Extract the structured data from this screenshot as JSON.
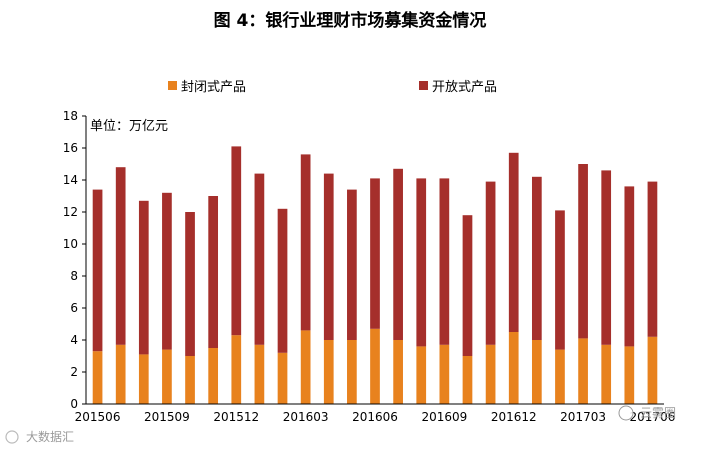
{
  "chart_data": {
    "type": "bar",
    "stacked": true,
    "title": "图 4：银行业理财市场募集资金情况",
    "unit_label": "单位：万亿元",
    "ylim": [
      0,
      18
    ],
    "yticks": [
      0,
      2,
      4,
      6,
      8,
      10,
      12,
      14,
      16,
      18
    ],
    "categories": [
      "201506",
      "201507",
      "201508",
      "201509",
      "201510",
      "201511",
      "201512",
      "201601",
      "201602",
      "201603",
      "201604",
      "201605",
      "201606",
      "201607",
      "201608",
      "201609",
      "201610",
      "201611",
      "201612",
      "201701",
      "201702",
      "201703",
      "201704",
      "201705",
      "201706"
    ],
    "x_tick_labels": [
      "201506",
      "",
      "",
      "201509",
      "",
      "",
      "201512",
      "",
      "",
      "201603",
      "",
      "",
      "201606",
      "",
      "",
      "201609",
      "",
      "",
      "201612",
      "",
      "",
      "201703",
      "",
      "",
      "201706"
    ],
    "series": [
      {
        "name": "封闭式产品",
        "color": "#E8821E",
        "values": [
          3.3,
          3.7,
          3.1,
          3.4,
          3.0,
          3.5,
          4.3,
          3.7,
          3.2,
          4.6,
          4.0,
          4.0,
          4.7,
          4.0,
          3.6,
          3.7,
          3.0,
          3.7,
          4.5,
          4.0,
          3.4,
          4.1,
          3.7,
          3.6,
          4.2
        ]
      },
      {
        "name": "开放式产品",
        "color": "#A52F2B",
        "values": [
          10.1,
          11.1,
          9.6,
          9.8,
          9.0,
          9.5,
          11.8,
          10.7,
          9.0,
          11.0,
          10.4,
          9.4,
          9.4,
          10.7,
          10.5,
          10.4,
          8.8,
          10.2,
          11.2,
          10.2,
          8.7,
          10.9,
          10.9,
          10.0,
          9.7
        ]
      }
    ]
  },
  "watermarks": {
    "left": "大数据汇",
    "right": "云雾圈"
  }
}
